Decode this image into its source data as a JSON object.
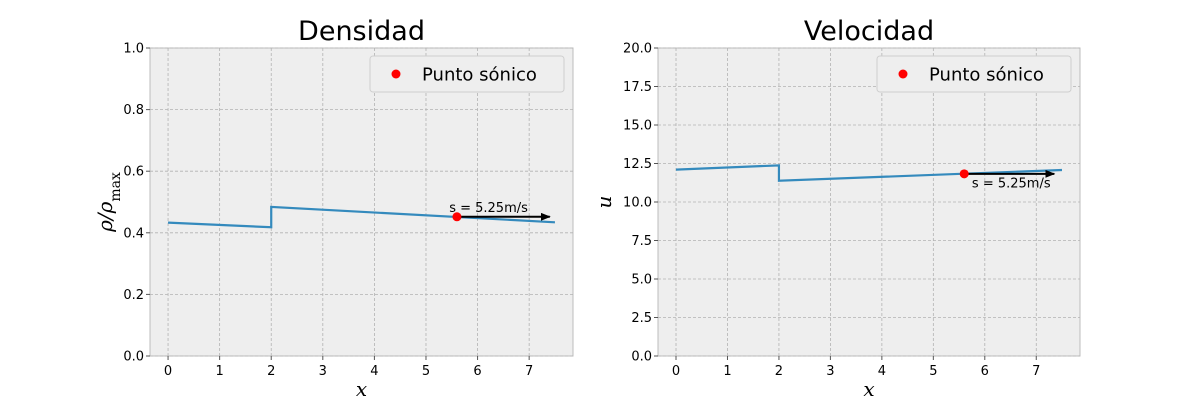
{
  "chart_data": [
    {
      "type": "line",
      "title": "Densidad",
      "xlabel": "x",
      "ylabel": "ρ/ρmax",
      "ylabel_main": "ρ/ρ",
      "ylabel_sub": "max",
      "xlim": [
        -0.35,
        7.85
      ],
      "ylim": [
        0,
        1
      ],
      "xticks": [
        0,
        1,
        2,
        3,
        4,
        5,
        6,
        7
      ],
      "yticks": [
        0.0,
        0.2,
        0.4,
        0.6,
        0.8,
        1.0
      ],
      "ytick_labels": [
        "0.0",
        "0.2",
        "0.4",
        "0.6",
        "0.8",
        "1.0"
      ],
      "grid": true,
      "legend_position": "top-right",
      "series": [
        {
          "color": "#348abd",
          "x": [
            0,
            2,
            2,
            7.5
          ],
          "y": [
            0.433,
            0.418,
            0.484,
            0.434
          ]
        }
      ],
      "sonic_point": {
        "name": "Punto sónico",
        "x": 5.6,
        "y": 0.452,
        "color": "#ff0000"
      },
      "arrow": {
        "x0": 5.6,
        "y0": 0.452,
        "x1": 7.4,
        "y1": 0.452,
        "label": "s = 5.25m/s",
        "label_x": 5.45,
        "label_y": 0.467
      }
    },
    {
      "type": "line",
      "title": "Velocidad",
      "xlabel": "x",
      "ylabel": "u",
      "xlim": [
        -0.35,
        7.85
      ],
      "ylim": [
        0,
        20
      ],
      "xticks": [
        0,
        1,
        2,
        3,
        4,
        5,
        6,
        7
      ],
      "yticks": [
        0.0,
        2.5,
        5.0,
        7.5,
        10.0,
        12.5,
        15.0,
        17.5,
        20.0
      ],
      "ytick_labels": [
        "0.0",
        "2.5",
        "5.0",
        "7.5",
        "10.0",
        "12.5",
        "15.0",
        "17.5",
        "20.0"
      ],
      "grid": true,
      "legend_position": "top-right",
      "series": [
        {
          "color": "#348abd",
          "x": [
            0,
            2,
            2,
            7.5
          ],
          "y": [
            12.1,
            12.38,
            11.38,
            12.08
          ]
        }
      ],
      "sonic_point": {
        "name": "Punto sónico",
        "x": 5.6,
        "y": 11.83,
        "color": "#ff0000"
      },
      "arrow": {
        "x0": 5.6,
        "y0": 11.83,
        "x1": 7.35,
        "y1": 11.83,
        "label": "s = 5.25m/s",
        "label_x": 5.75,
        "label_y": 10.95
      }
    }
  ]
}
